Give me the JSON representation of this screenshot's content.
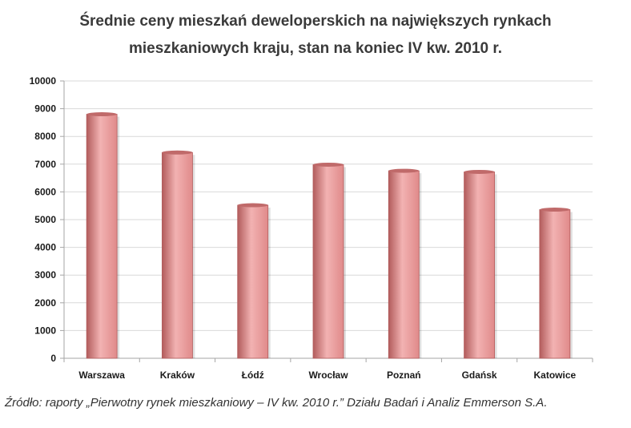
{
  "chart_data": {
    "type": "bar",
    "title_lines": [
      "Średnie ceny mieszkań deweloperskich na największych rynkach",
      "mieszkaniowych kraju, stan na koniec IV kw. 2010 r."
    ],
    "categories": [
      "Warszawa",
      "Kraków",
      "Łódź",
      "Wrocław",
      "Poznań",
      "Gdańsk",
      "Katowice"
    ],
    "values": [
      8800,
      7420,
      5520,
      6980,
      6760,
      6720,
      5360
    ],
    "ylim": [
      0,
      10000
    ],
    "ytick_step": 1000,
    "yticks": [
      "0",
      "1000",
      "2000",
      "3000",
      "4000",
      "5000",
      "6000",
      "7000",
      "8000",
      "9000",
      "10000"
    ],
    "grid": true,
    "legend": "none",
    "xlabel": "",
    "ylabel": ""
  },
  "colors": {
    "bar_light": "#f2b2b2",
    "bar_mid": "#e08a8a",
    "bar_dark": "#b25c5c",
    "bar_top": "#c06a6a",
    "grid": "#d9d9d9",
    "axis": "#a6a6a6"
  },
  "source": "Źródło: raporty „Pierwotny rynek mieszkaniowy – IV kw. 2010 r.” Działu Badań i Analiz Emmerson S.A."
}
